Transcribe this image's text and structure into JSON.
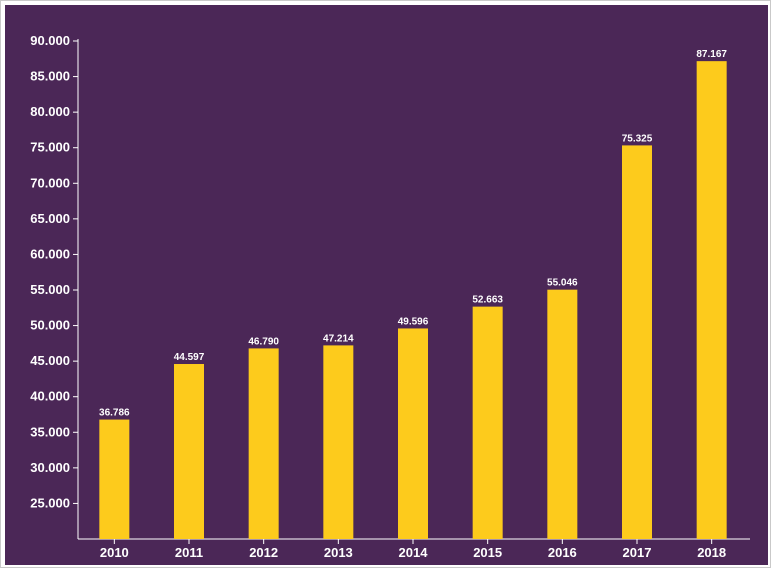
{
  "colors": {
    "background": "#4b2757",
    "bar": "#fdcb1c",
    "axis": "#ffffff",
    "text": "#ffffff"
  },
  "chart_data": {
    "type": "bar",
    "title": "",
    "xlabel": "",
    "ylabel": "",
    "categories": [
      "2010",
      "2011",
      "2012",
      "2013",
      "2014",
      "2015",
      "2016",
      "2017",
      "2018"
    ],
    "values": [
      36786,
      44597,
      46790,
      47214,
      49596,
      52663,
      55046,
      75325,
      87167
    ],
    "value_labels": [
      "36.786",
      "44.597",
      "46.790",
      "47.214",
      "49.596",
      "52.663",
      "55.046",
      "75.325",
      "87.167"
    ],
    "ylim": [
      20000,
      90000
    ],
    "yticks": [
      25000,
      30000,
      35000,
      40000,
      45000,
      50000,
      55000,
      60000,
      65000,
      70000,
      75000,
      80000,
      85000,
      90000
    ],
    "ytick_labels": [
      "25.000",
      "30.000",
      "35.000",
      "40.000",
      "45.000",
      "50.000",
      "55.000",
      "60.000",
      "65.000",
      "70.000",
      "75.000",
      "80.000",
      "85.000",
      "90.000"
    ],
    "grid": false,
    "legend": "none"
  }
}
